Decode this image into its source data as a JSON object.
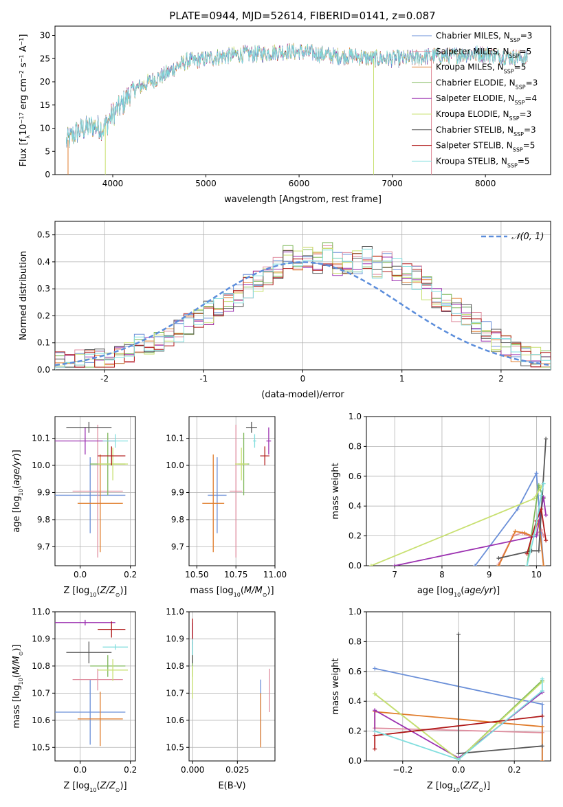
{
  "figure_title": "PLATE=0944, MJD=52614, FIBERID=0141, z=0.087",
  "colors": {
    "Chabrier MILES": "#6a8fd8",
    "Salpeter MILES": "#e08fa0",
    "Kroupa MILES": "#e07b2a",
    "Chabrier ELODIE": "#7fb85a",
    "Salpeter ELODIE": "#9b30b0",
    "Kroupa ELODIE": "#c8e070",
    "Chabrier STELIB": "#555555",
    "Salpeter STELIB": "#b01818",
    "Kroupa STELIB": "#80dede",
    "gaussian": "#5b8ddb"
  },
  "chart_data": [
    {
      "id": "spectrum",
      "type": "line",
      "title": "PLATE=0944, MJD=52614, FIBERID=0141, z=0.087",
      "xlabel": "wavelength [Angstrom, rest frame]",
      "ylabel": "Flux [fλ10⁻¹⁷ erg cm⁻² s⁻¹ A⁻¹]",
      "xlim": [
        3380,
        8700
      ],
      "ylim": [
        0,
        32
      ],
      "xticks": [
        4000,
        5000,
        6000,
        7000,
        8000
      ],
      "yticks": [
        0,
        5,
        10,
        15,
        20,
        25,
        30
      ],
      "grid": false,
      "legend_placement": "right",
      "series": [
        {
          "name": "Chabrier MILES, N",
          "sub": "SSP",
          "suffix": "=3"
        },
        {
          "name": "Salpeter MILES, N",
          "sub": "SSP",
          "suffix": "=5"
        },
        {
          "name": "Kroupa MILES, N",
          "sub": "SSP",
          "suffix": "=5"
        },
        {
          "name": "Chabrier ELODIE, N",
          "sub": "SSP",
          "suffix": "=3"
        },
        {
          "name": "Salpeter ELODIE, N",
          "sub": "SSP",
          "suffix": "=4"
        },
        {
          "name": "Kroupa ELODIE, N",
          "sub": "SSP",
          "suffix": "=3"
        },
        {
          "name": "Chabrier STELIB, N",
          "sub": "SSP",
          "suffix": "=3"
        },
        {
          "name": "Salpeter STELIB, N",
          "sub": "SSP",
          "suffix": "=5"
        },
        {
          "name": "Kroupa STELIB, N",
          "sub": "SSP",
          "suffix": "=5"
        }
      ],
      "continuum": {
        "x": [
          3500,
          3600,
          3700,
          3800,
          3900,
          4000,
          4100,
          4200,
          4300,
          4400,
          4500,
          4600,
          4700,
          4800,
          4900,
          5000,
          5200,
          5400,
          5600,
          5800,
          6000,
          6200,
          6400,
          6600,
          6800,
          7000,
          7200,
          7400,
          7600,
          7800,
          8000,
          8200,
          8450
        ],
        "y": [
          7,
          9,
          10,
          10.5,
          10,
          13,
          15,
          18,
          19,
          20,
          21,
          22,
          23.5,
          24.5,
          24.5,
          25,
          25.5,
          26,
          26,
          26.5,
          26.5,
          26,
          25.5,
          25.5,
          25,
          25,
          25,
          25.5,
          25.5,
          26,
          26,
          25.5,
          25
        ]
      }
    },
    {
      "id": "residuals",
      "type": "bar",
      "xlabel": "(data-model)/error",
      "ylabel": "Normed distribution",
      "xlim": [
        -2.5,
        2.5
      ],
      "ylim": [
        0,
        0.55
      ],
      "xticks": [
        -2,
        -1,
        0,
        1,
        2
      ],
      "yticks": [
        0.0,
        0.1,
        0.2,
        0.3,
        0.4,
        0.5
      ],
      "grid": true,
      "legend": [
        "𝒩(0, 1)"
      ],
      "legend_placement": "top-right",
      "bins": {
        "start": -2.5,
        "width": 0.1,
        "count": 50
      },
      "heights_base": [
        0.03,
        0.02,
        0.03,
        0.04,
        0.05,
        0.05,
        0.06,
        0.07,
        0.09,
        0.1,
        0.11,
        0.13,
        0.14,
        0.17,
        0.19,
        0.21,
        0.24,
        0.26,
        0.28,
        0.31,
        0.33,
        0.36,
        0.38,
        0.42,
        0.4,
        0.41,
        0.4,
        0.43,
        0.39,
        0.4,
        0.4,
        0.42,
        0.38,
        0.4,
        0.37,
        0.36,
        0.34,
        0.3,
        0.27,
        0.25,
        0.22,
        0.2,
        0.17,
        0.14,
        0.11,
        0.09,
        0.07,
        0.06,
        0.04,
        0.03
      ],
      "gaussian": {
        "mu": 0,
        "sigma": 1
      }
    },
    {
      "id": "age_vs_Z",
      "type": "scatter",
      "xlabel": "Z [log₁₀(Z/Z⊙)]",
      "ylabel": "age  [log₁₀(age/yr)]",
      "xlim": [
        -0.1,
        0.22
      ],
      "ylim": [
        9.63,
        10.18
      ],
      "xticks": [
        0.0,
        0.2
      ],
      "xtick_labels": [
        "0.0",
        "0.2"
      ],
      "yticks": [
        9.7,
        9.8,
        9.9,
        10.0,
        10.1
      ],
      "grid": true,
      "points": [
        {
          "model": "Chabrier MILES",
          "x": 0.04,
          "y": 9.89,
          "xerr": 0.14,
          "yerr": 0.14
        },
        {
          "model": "Salpeter MILES",
          "x": 0.07,
          "y": 9.905,
          "xerr": 0.1,
          "yerr": 0.245
        },
        {
          "model": "Kroupa MILES",
          "x": 0.08,
          "y": 9.86,
          "xerr": 0.09,
          "yerr": 0.18
        },
        {
          "model": "Chabrier ELODIE",
          "x": 0.11,
          "y": 10.005,
          "xerr": 0.07,
          "yerr": 0.115
        },
        {
          "model": "Salpeter ELODIE",
          "x": 0.02,
          "y": 10.09,
          "xerr": 0.12,
          "yerr": 0.05
        },
        {
          "model": "Kroupa ELODIE",
          "x": 0.13,
          "y": 10.005,
          "xerr": 0.06,
          "yerr": 0.06
        },
        {
          "model": "Chabrier STELIB",
          "x": 0.035,
          "y": 10.14,
          "xerr": 0.09,
          "yerr": 0.02
        },
        {
          "model": "Salpeter STELIB",
          "x": 0.125,
          "y": 10.035,
          "xerr": 0.055,
          "yerr": 0.035
        },
        {
          "model": "Kroupa STELIB",
          "x": 0.14,
          "y": 10.09,
          "xerr": 0.05,
          "yerr": 0.025
        }
      ]
    },
    {
      "id": "age_vs_mass",
      "type": "scatter",
      "xlabel": "mass [log₁₀(M/M⊙)]",
      "ylabel": "",
      "xlim": [
        10.45,
        11.0
      ],
      "ylim": [
        9.63,
        10.18
      ],
      "xticks": [
        10.5,
        10.75,
        11.0
      ],
      "xtick_labels": [
        "10.50",
        "10.75",
        "11.00"
      ],
      "yticks": [
        9.7,
        9.8,
        9.9,
        10.0,
        10.1
      ],
      "grid": true,
      "points": [
        {
          "model": "Chabrier MILES",
          "x": 10.63,
          "y": 9.89,
          "xerr": 0.06,
          "yerr": 0.14
        },
        {
          "model": "Salpeter MILES",
          "x": 10.75,
          "y": 9.905,
          "xerr": 0.04,
          "yerr": 0.245
        },
        {
          "model": "Kroupa MILES",
          "x": 10.605,
          "y": 9.86,
          "xerr": 0.07,
          "yerr": 0.18
        },
        {
          "model": "Chabrier ELODIE",
          "x": 10.8,
          "y": 10.005,
          "xerr": 0.035,
          "yerr": 0.115
        },
        {
          "model": "Salpeter ELODIE",
          "x": 10.96,
          "y": 10.09,
          "xerr": 0.015,
          "yerr": 0.05
        },
        {
          "model": "Kroupa ELODIE",
          "x": 10.785,
          "y": 10.005,
          "xerr": 0.04,
          "yerr": 0.06
        },
        {
          "model": "Chabrier STELIB",
          "x": 10.85,
          "y": 10.14,
          "xerr": 0.035,
          "yerr": 0.02
        },
        {
          "model": "Salpeter STELIB",
          "x": 10.935,
          "y": 10.035,
          "xerr": 0.03,
          "yerr": 0.035
        },
        {
          "model": "Kroupa STELIB",
          "x": 10.87,
          "y": 10.09,
          "xerr": 0.01,
          "yerr": 0.025
        }
      ]
    },
    {
      "id": "weight_vs_age",
      "type": "line",
      "xlabel": "age  [log₁₀(age/yr)]",
      "ylabel": "mass weight",
      "xlim": [
        6.4,
        10.3
      ],
      "ylim": [
        0,
        1.0
      ],
      "xticks": [
        7,
        8,
        9,
        10
      ],
      "yticks": [
        0.0,
        0.2,
        0.4,
        0.6,
        0.8,
        1.0
      ],
      "grid": true,
      "series": [
        {
          "model": "Chabrier MILES",
          "x": [
            8.7,
            9.6,
            10.0,
            10.15
          ],
          "y": [
            0.0,
            0.38,
            0.62,
            0.0
          ]
        },
        {
          "model": "Salpeter MILES",
          "x": [
            9.2,
            9.5,
            9.7,
            9.9,
            10.0,
            10.1,
            10.15
          ],
          "y": [
            0.01,
            0.2,
            0.22,
            0.19,
            0.21,
            0.24,
            0.2
          ]
        },
        {
          "model": "Kroupa MILES",
          "x": [
            9.2,
            9.55,
            9.75,
            9.9,
            10.05,
            10.15
          ],
          "y": [
            0.0,
            0.23,
            0.22,
            0.2,
            0.3,
            0.0
          ]
        },
        {
          "model": "Chabrier ELODIE",
          "x": [
            9.8,
            10.05,
            10.15
          ],
          "y": [
            0.0,
            0.54,
            0.45
          ]
        },
        {
          "model": "Salpeter ELODIE",
          "x": [
            7.0,
            10.0,
            10.15,
            10.2
          ],
          "y": [
            0.0,
            0.2,
            0.46,
            0.34
          ]
        },
        {
          "model": "Kroupa ELODIE",
          "x": [
            6.5,
            9.95,
            10.1
          ],
          "y": [
            0.0,
            0.45,
            0.53
          ]
        },
        {
          "model": "Chabrier STELIB",
          "x": [
            9.2,
            9.9,
            10.05,
            10.2
          ],
          "y": [
            0.05,
            0.1,
            0.1,
            0.85
          ]
        },
        {
          "model": "Salpeter STELIB",
          "x": [
            9.8,
            10.0,
            10.1,
            10.2
          ],
          "y": [
            0.08,
            0.3,
            0.38,
            0.17
          ]
        },
        {
          "model": "Kroupa STELIB",
          "x": [
            9.8,
            9.95,
            10.1,
            10.15
          ],
          "y": [
            0.0,
            0.2,
            0.47,
            0.55
          ]
        }
      ]
    },
    {
      "id": "mass_vs_Z",
      "type": "scatter",
      "xlabel": "Z [log₁₀(Z/Z⊙)]",
      "ylabel": "mass [log₁₀(M/M⊙)]",
      "xlim": [
        -0.1,
        0.22
      ],
      "ylim": [
        10.45,
        11.0
      ],
      "xticks": [
        0.0,
        0.2
      ],
      "xtick_labels": [
        "0.0",
        "0.2"
      ],
      "yticks": [
        10.5,
        10.6,
        10.7,
        10.8,
        10.9,
        11.0
      ],
      "grid": true,
      "points": [
        {
          "model": "Chabrier MILES",
          "x": 0.04,
          "y": 10.63,
          "xerr": 0.14,
          "yerr": 0.12
        },
        {
          "model": "Salpeter MILES",
          "x": 0.07,
          "y": 10.75,
          "xerr": 0.1,
          "yerr": 0.04
        },
        {
          "model": "Kroupa MILES",
          "x": 0.08,
          "y": 10.605,
          "xerr": 0.09,
          "yerr": 0.1
        },
        {
          "model": "Chabrier ELODIE",
          "x": 0.11,
          "y": 10.8,
          "xerr": 0.07,
          "yerr": 0.04
        },
        {
          "model": "Salpeter ELODIE",
          "x": 0.02,
          "y": 10.96,
          "xerr": 0.12,
          "yerr": 0.01
        },
        {
          "model": "Kroupa ELODIE",
          "x": 0.13,
          "y": 10.785,
          "xerr": 0.06,
          "yerr": 0.04
        },
        {
          "model": "Chabrier STELIB",
          "x": 0.035,
          "y": 10.85,
          "xerr": 0.09,
          "yerr": 0.04
        },
        {
          "model": "Salpeter STELIB",
          "x": 0.125,
          "y": 10.935,
          "xerr": 0.055,
          "yerr": 0.03
        },
        {
          "model": "Kroupa STELIB",
          "x": 0.14,
          "y": 10.87,
          "xerr": 0.05,
          "yerr": 0.01
        }
      ]
    },
    {
      "id": "mass_vs_ebv",
      "type": "scatter",
      "xlabel": "E(B-V)",
      "ylabel": "",
      "xlim": [
        -0.002,
        0.046
      ],
      "ylim": [
        10.45,
        11.0
      ],
      "xticks": [
        0.0,
        0.025
      ],
      "xtick_labels": [
        "0.000",
        "0.025"
      ],
      "yticks": [
        10.5,
        10.6,
        10.7,
        10.8,
        10.9,
        11.0
      ],
      "grid": true,
      "points": [
        {
          "model": "Chabrier MILES",
          "x": 0.038,
          "y": 10.63,
          "xerr": 0,
          "yerr": 0.12
        },
        {
          "model": "Salpeter MILES",
          "x": 0.043,
          "y": 10.71,
          "xerr": 0,
          "yerr": 0.08
        },
        {
          "model": "Kroupa MILES",
          "x": 0.038,
          "y": 10.6,
          "xerr": 0,
          "yerr": 0.1
        },
        {
          "model": "Chabrier ELODIE",
          "x": 0.0,
          "y": 10.8,
          "xerr": 0,
          "yerr": 0.04
        },
        {
          "model": "Salpeter ELODIE",
          "x": 0.0,
          "y": 10.92,
          "xerr": 0,
          "yerr": 0.04
        },
        {
          "model": "Kroupa ELODIE",
          "x": 0.0,
          "y": 10.74,
          "xerr": 0,
          "yerr": 0.06
        },
        {
          "model": "Chabrier STELIB",
          "x": 0.0,
          "y": 10.85,
          "xerr": 0,
          "yerr": 0.04
        },
        {
          "model": "Salpeter STELIB",
          "x": 0.0,
          "y": 10.935,
          "xerr": 0,
          "yerr": 0.04
        },
        {
          "model": "Kroupa STELIB",
          "x": 0.0,
          "y": 10.87,
          "xerr": 0,
          "yerr": 0.03
        }
      ]
    },
    {
      "id": "weight_vs_Z",
      "type": "line",
      "xlabel": "Z [log₁₀(Z/Z⊙)]",
      "ylabel": "mass weight",
      "xlim": [
        -0.33,
        0.33
      ],
      "ylim": [
        0,
        1.0
      ],
      "xticks": [
        -0.2,
        0.0,
        0.2
      ],
      "xtick_labels": [
        "−0.2",
        "0.0",
        "0.2"
      ],
      "yticks": [
        0.0,
        0.2,
        0.4,
        0.6,
        0.8,
        1.0
      ],
      "grid": true,
      "series": [
        {
          "model": "Chabrier MILES",
          "x": [
            -0.3,
            0.3,
            0.3
          ],
          "y": [
            0.62,
            0.38,
            0.0
          ]
        },
        {
          "model": "Salpeter MILES",
          "x": [
            -0.3,
            0.3
          ],
          "y": [
            0.22,
            0.19
          ]
        },
        {
          "model": "Kroupa MILES",
          "x": [
            -0.3,
            -0.3,
            0.3,
            0.3
          ],
          "y": [
            0.2,
            0.33,
            0.23,
            0.0
          ]
        },
        {
          "model": "Chabrier ELODIE",
          "x": [
            -0.3,
            0.0,
            0.3
          ],
          "y": [
            0.45,
            0.01,
            0.54
          ]
        },
        {
          "model": "Salpeter ELODIE",
          "x": [
            -0.3,
            -0.3,
            0.0,
            0.3
          ],
          "y": [
            0.2,
            0.34,
            0.02,
            0.46
          ]
        },
        {
          "model": "Kroupa ELODIE",
          "x": [
            -0.3,
            0.0,
            0.3
          ],
          "y": [
            0.45,
            0.01,
            0.53
          ]
        },
        {
          "model": "Chabrier STELIB",
          "x": [
            0.0,
            0.0,
            0.3
          ],
          "y": [
            0.85,
            0.05,
            0.1
          ]
        },
        {
          "model": "Salpeter STELIB",
          "x": [
            -0.3,
            -0.3,
            0.3
          ],
          "y": [
            0.08,
            0.17,
            0.3
          ]
        },
        {
          "model": "Kroupa STELIB",
          "x": [
            -0.3,
            0.0,
            0.3,
            0.3
          ],
          "y": [
            0.2,
            0.01,
            0.47,
            0.55
          ]
        }
      ]
    }
  ]
}
